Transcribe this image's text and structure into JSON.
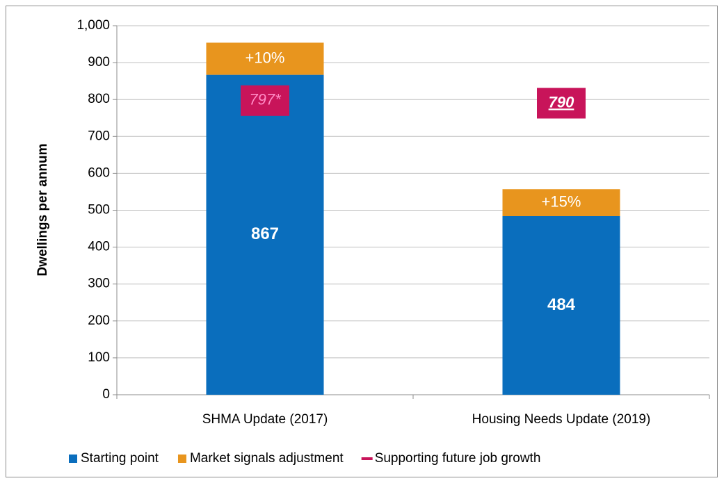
{
  "chart_data": {
    "type": "bar",
    "stacked": true,
    "y_label": "Dwellings per annum",
    "categories": [
      "SHMA Update (2017)",
      "Housing Needs Update (2019)"
    ],
    "series": [
      {
        "name": "Starting point",
        "color": "#0a6ebd",
        "values": [
          867,
          484
        ]
      },
      {
        "name": "Market signals adjustment",
        "color": "#e8951e",
        "values": [
          87,
          73
        ],
        "segment_labels": [
          "+10%",
          "+15%"
        ]
      },
      {
        "name": "Supporting future job growth",
        "type": "marker",
        "color": "#c8145a",
        "values": [
          797,
          790
        ],
        "value_labels": [
          "797*",
          "790"
        ]
      }
    ],
    "ylim": [
      0,
      1000
    ],
    "yticks": [
      0,
      100,
      200,
      300,
      400,
      500,
      600,
      700,
      800,
      900,
      {
        "value": 1000,
        "label": "1,000"
      }
    ],
    "grid": true,
    "legend": "bottom"
  }
}
